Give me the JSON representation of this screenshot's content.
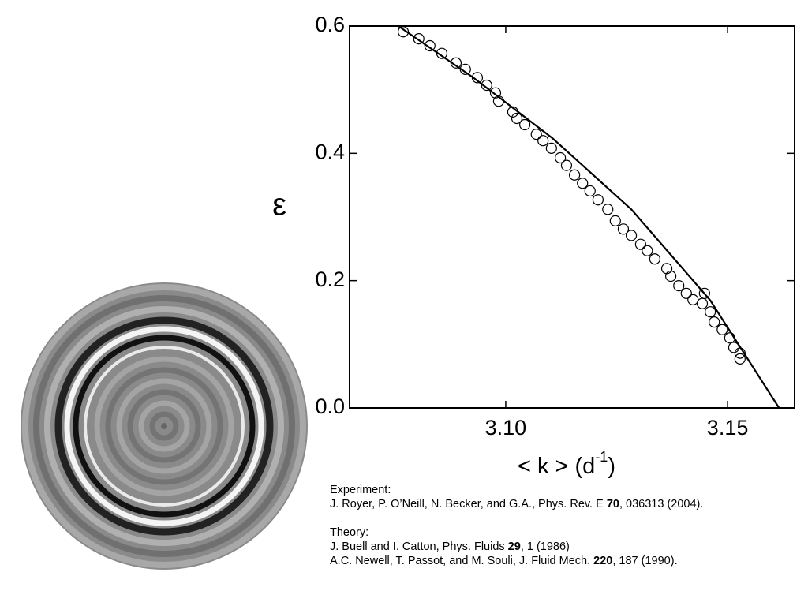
{
  "chart_data": {
    "type": "scatter",
    "ylabel": "ε",
    "xlabel": [
      "< k >  (d",
      "-1",
      ")"
    ],
    "xlim": [
      3.0648,
      3.1651
    ],
    "ylim": [
      0,
      0.6
    ],
    "xticks": [
      {
        "value": 3.1,
        "label": "3.10"
      },
      3.15
    ],
    "yticks": [
      {
        "value": 0,
        "label": "0.0"
      },
      0.2,
      0.4,
      0.6
    ],
    "series": [
      {
        "kind": "markers",
        "color": "#000",
        "x": [
          3.0769,
          3.0804,
          3.0829,
          3.0856,
          3.0888,
          3.0909,
          3.0936,
          3.0957,
          3.0977,
          3.0984,
          3.1016,
          3.1025,
          3.1043,
          3.1069,
          3.1084,
          3.1103,
          3.1123,
          3.1137,
          3.1155,
          3.1173,
          3.119,
          3.1208,
          3.123,
          3.1247,
          3.1265,
          3.1283,
          3.1304,
          3.1319,
          3.1336,
          3.1363,
          3.1372,
          3.139,
          3.1407,
          3.1422,
          3.1443,
          3.1448,
          3.1461,
          3.147,
          3.1488,
          3.1505,
          3.1514,
          3.1528,
          3.1528
        ],
        "values": [
          0.591,
          0.58,
          0.569,
          0.557,
          0.542,
          0.532,
          0.519,
          0.507,
          0.495,
          0.482,
          0.465,
          0.455,
          0.445,
          0.43,
          0.42,
          0.408,
          0.393,
          0.381,
          0.366,
          0.353,
          0.341,
          0.327,
          0.312,
          0.294,
          0.281,
          0.271,
          0.257,
          0.247,
          0.234,
          0.219,
          0.207,
          0.192,
          0.18,
          0.17,
          0.164,
          0.18,
          0.151,
          0.135,
          0.123,
          0.11,
          0.095,
          0.086,
          0.077
        ]
      },
      {
        "kind": "line",
        "color": "#000",
        "x": [
          3.0758,
          3.0927,
          3.1105,
          3.1283,
          3.1461,
          3.1616
        ],
        "values": [
          0.6,
          0.519,
          0.424,
          0.312,
          0.169,
          0.0
        ]
      }
    ]
  },
  "references": [
    {
      "heading": "Experiment:",
      "lines": [
        [
          {
            "text": "J. Royer, P. O’Neill, N. Becker, and G.A., Phys. Rev. E ",
            "bold": false
          },
          {
            "text": "70",
            "bold": true
          },
          {
            "text": ", 036313 (2004).",
            "bold": false
          }
        ]
      ]
    },
    {
      "heading": "Theory:",
      "lines": [
        [
          {
            "text": "J. Buell and I. Catton, Phys. Fluids ",
            "bold": false
          },
          {
            "text": "29",
            "bold": true
          },
          {
            "text": ", 1 (1986)",
            "bold": false
          }
        ],
        [
          {
            "text": "A.C. Newell, T. Passot, and M. Souli, J. Fluid Mech. ",
            "bold": false
          },
          {
            "text": "220",
            "bold": true
          },
          {
            "text": ", 187 (1990).",
            "bold": false
          }
        ]
      ]
    }
  ]
}
